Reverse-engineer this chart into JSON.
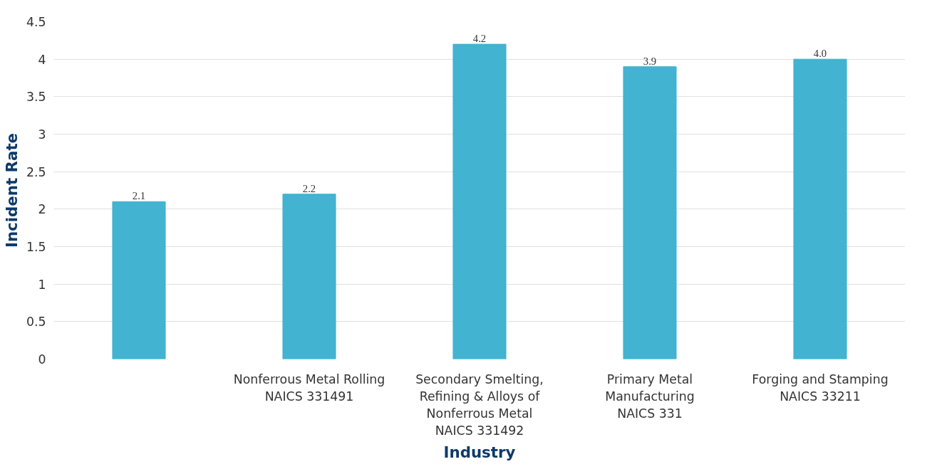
{
  "chart_data": {
    "type": "bar",
    "xlabel": "Industry",
    "ylabel": "Incident Rate",
    "categories": [
      null,
      "Nonferrous Metal Rolling\nNAICS 331491",
      "Secondary Smelting,\nRefining & Alloys of\nNonferrous Metal\nNAICS 331492",
      "Primary Metal\nManufacturing\nNAICS 331",
      "Forging and Stamping\nNAICS 33211"
    ],
    "values": [
      2.1,
      2.2,
      4.2,
      3.9,
      4.0
    ],
    "value_labels": [
      "2.1",
      "2.2",
      "4.2",
      "3.9",
      "4.0"
    ],
    "color": "#42b3d1",
    "ylim": [
      0,
      4.5
    ],
    "yticks": [
      0,
      0.5,
      1,
      1.5,
      2,
      2.5,
      3,
      3.5,
      4,
      4.5
    ],
    "grid": "y"
  }
}
